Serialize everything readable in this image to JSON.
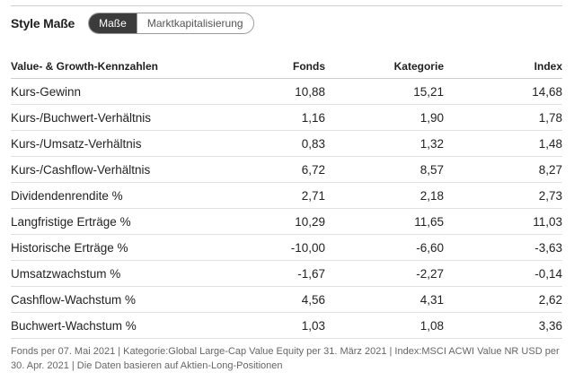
{
  "header": {
    "title": "Style Maße",
    "tabs": [
      {
        "label": "Maße",
        "active": true
      },
      {
        "label": "Marktkapitalisierung",
        "active": false
      }
    ]
  },
  "table": {
    "columns": [
      "Value- & Growth-Kennzahlen",
      "Fonds",
      "Kategorie",
      "Index"
    ],
    "rows": [
      {
        "label": "Kurs-Gewinn",
        "fonds": "10,88",
        "kategorie": "15,21",
        "index": "14,68"
      },
      {
        "label": "Kurs-/Buchwert-Verhältnis",
        "fonds": "1,16",
        "kategorie": "1,90",
        "index": "1,78"
      },
      {
        "label": "Kurs-/Umsatz-Verhältnis",
        "fonds": "0,83",
        "kategorie": "1,32",
        "index": "1,48"
      },
      {
        "label": "Kurs-/Cashflow-Verhältnis",
        "fonds": "6,72",
        "kategorie": "8,57",
        "index": "8,27"
      },
      {
        "label": "Dividendenrendite %",
        "fonds": "2,71",
        "kategorie": "2,18",
        "index": "2,73"
      },
      {
        "label": "Langfristige Erträge %",
        "fonds": "10,29",
        "kategorie": "11,65",
        "index": "11,03"
      },
      {
        "label": "Historische Erträge %",
        "fonds": "-10,00",
        "kategorie": "-6,60",
        "index": "-3,63"
      },
      {
        "label": "Umsatzwachstum %",
        "fonds": "-1,67",
        "kategorie": "-2,27",
        "index": "-0,14"
      },
      {
        "label": "Cashflow-Wachstum %",
        "fonds": "4,56",
        "kategorie": "4,31",
        "index": "2,62"
      },
      {
        "label": "Buchwert-Wachstum %",
        "fonds": "1,03",
        "kategorie": "1,08",
        "index": "3,36"
      }
    ]
  },
  "footnote": "Fonds per 07. Mai 2021 | Kategorie:Global Large-Cap Value Equity per 31. März 2021 | Index:MSCI ACWI Value NR USD per 30. Apr. 2021 | Die Daten basieren auf Aktien-Long-Positionen"
}
